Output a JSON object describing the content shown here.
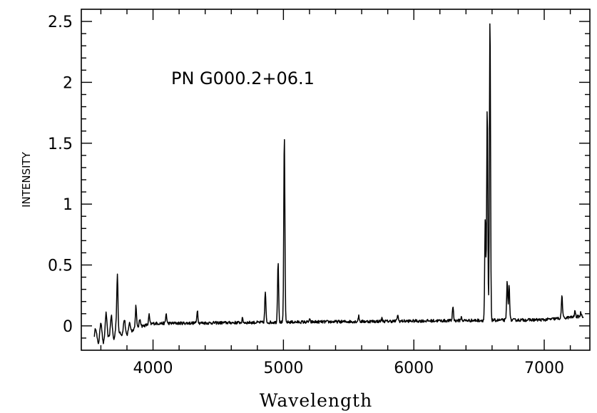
{
  "chart_data": {
    "type": "line",
    "title": "",
    "annotation": "PN  G000.2+06.1",
    "xlabel": "Wavelength",
    "ylabel": "INTENSITY",
    "xlim": [
      3450,
      7350
    ],
    "ylim": [
      -0.2,
      2.6
    ],
    "xticks": [
      4000,
      5000,
      6000,
      7000
    ],
    "yticks": [
      0,
      0.5,
      1,
      1.5,
      2,
      2.5
    ],
    "ytick_labels": [
      "0",
      "0.5",
      "1",
      "1.5",
      "2",
      "2.5"
    ],
    "grid": false,
    "baseline": [
      [
        3550,
        -0.1
      ],
      [
        4000,
        0.02
      ],
      [
        5000,
        0.03
      ],
      [
        6000,
        0.04
      ],
      [
        7000,
        0.05
      ],
      [
        7300,
        0.08
      ]
    ],
    "noise": [
      {
        "x": 3560,
        "y": 0.08
      },
      {
        "x": 3580,
        "y": -0.05
      },
      {
        "x": 3600,
        "y": 0.12
      },
      {
        "x": 3620,
        "y": -0.06
      },
      {
        "x": 3640,
        "y": 0.18
      },
      {
        "x": 3660,
        "y": -0.02
      },
      {
        "x": 3680,
        "y": 0.15
      },
      {
        "x": 3700,
        "y": -0.05
      },
      {
        "x": 3720,
        "y": 0.1
      },
      {
        "x": 3760,
        "y": -0.03
      },
      {
        "x": 3780,
        "y": 0.09
      },
      {
        "x": 3800,
        "y": -0.05
      },
      {
        "x": 3820,
        "y": 0.05
      },
      {
        "x": 3840,
        "y": -0.02
      },
      {
        "x": 3900,
        "y": 0.06
      },
      {
        "x": 3940,
        "y": 0.0
      }
    ],
    "lines": [
      {
        "x": 3727,
        "y": 0.37
      },
      {
        "x": 3869,
        "y": 0.17
      },
      {
        "x": 3970,
        "y": 0.09
      },
      {
        "x": 4101,
        "y": 0.1
      },
      {
        "x": 4340,
        "y": 0.13
      },
      {
        "x": 4686,
        "y": 0.06
      },
      {
        "x": 4861,
        "y": 0.28
      },
      {
        "x": 4959,
        "y": 0.53
      },
      {
        "x": 5007,
        "y": 1.57
      },
      {
        "x": 5200,
        "y": 0.05
      },
      {
        "x": 5577,
        "y": 0.08
      },
      {
        "x": 5755,
        "y": 0.06
      },
      {
        "x": 5876,
        "y": 0.09
      },
      {
        "x": 6300,
        "y": 0.16
      },
      {
        "x": 6364,
        "y": 0.07
      },
      {
        "x": 6548,
        "y": 0.89
      },
      {
        "x": 6563,
        "y": 1.8
      },
      {
        "x": 6584,
        "y": 2.55
      },
      {
        "x": 6716,
        "y": 0.37
      },
      {
        "x": 6731,
        "y": 0.34
      },
      {
        "x": 7136,
        "y": 0.25
      },
      {
        "x": 7236,
        "y": 0.12
      },
      {
        "x": 7281,
        "y": 0.11
      }
    ]
  }
}
